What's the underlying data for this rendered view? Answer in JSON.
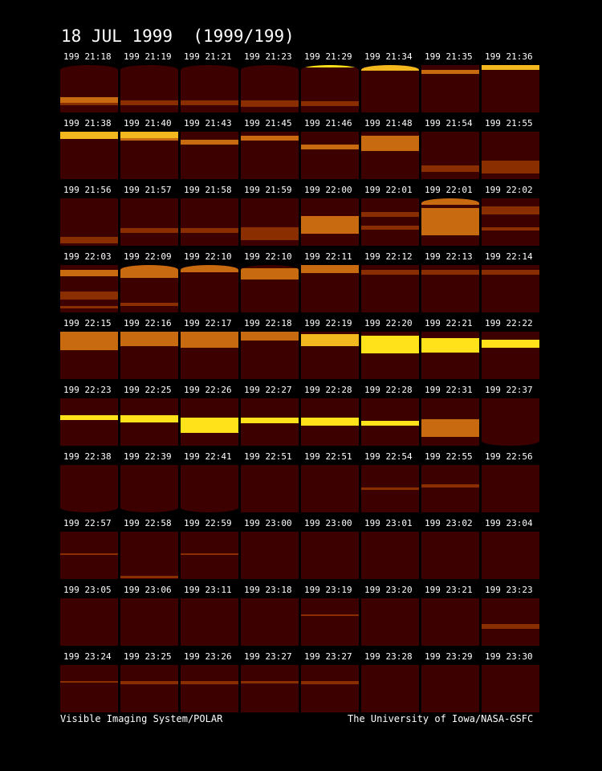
{
  "title": "18 JUL 1999  (1999/199)",
  "footer": {
    "left": "Visible Imaging System/POLAR",
    "right": "The University of Iowa/NASA-GSFC"
  },
  "colors": {
    "background": "#000000",
    "frame_dark": "#3d0000",
    "band_dim": "#8a2e00",
    "band_mid": "#c86a10",
    "band_bright": "#f2b81e",
    "band_hot": "#ffe21a"
  },
  "frames": [
    [
      "199 21:18",
      "199 21:19",
      "199 21:21",
      "199 21:23",
      "199 21:29",
      "199 21:34",
      "199 21:35",
      "199 21:36"
    ],
    [
      "199 21:38",
      "199 21:40",
      "199 21:43",
      "199 21:45",
      "199 21:46",
      "199 21:48",
      "199 21:54",
      "199 21:55"
    ],
    [
      "199 21:56",
      "199 21:57",
      "199 21:58",
      "199 21:59",
      "199 22:00",
      "199 22:01",
      "199 22:01",
      "199 22:02"
    ],
    [
      "199 22:03",
      "199 22:09",
      "199 22:10",
      "199 22:10",
      "199 22:11",
      "199 22:12",
      "199 22:13",
      "199 22:14"
    ],
    [
      "199 22:15",
      "199 22:16",
      "199 22:17",
      "199 22:18",
      "199 22:19",
      "199 22:20",
      "199 22:21",
      "199 22:22"
    ],
    [
      "199 22:23",
      "199 22:25",
      "199 22:26",
      "199 22:27",
      "199 22:28",
      "199 22:28",
      "199 22:31",
      "199 22:37"
    ],
    [
      "199 22:38",
      "199 22:39",
      "199 22:41",
      "199 22:51",
      "199 22:51",
      "199 22:54",
      "199 22:55",
      "199 22:56"
    ],
    [
      "199 22:57",
      "199 22:58",
      "199 22:59",
      "199 23:00",
      "199 23:00",
      "199 23:01",
      "199 23:02",
      "199 23:04"
    ],
    [
      "199 23:05",
      "199 23:06",
      "199 23:11",
      "199 23:18",
      "199 23:19",
      "199 23:20",
      "199 23:21",
      "199 23:23"
    ],
    [
      "199 23:24",
      "199 23:25",
      "199 23:26",
      "199 23:27",
      "199 23:27",
      "199 23:28",
      "199 23:29",
      "199 23:30"
    ]
  ]
}
